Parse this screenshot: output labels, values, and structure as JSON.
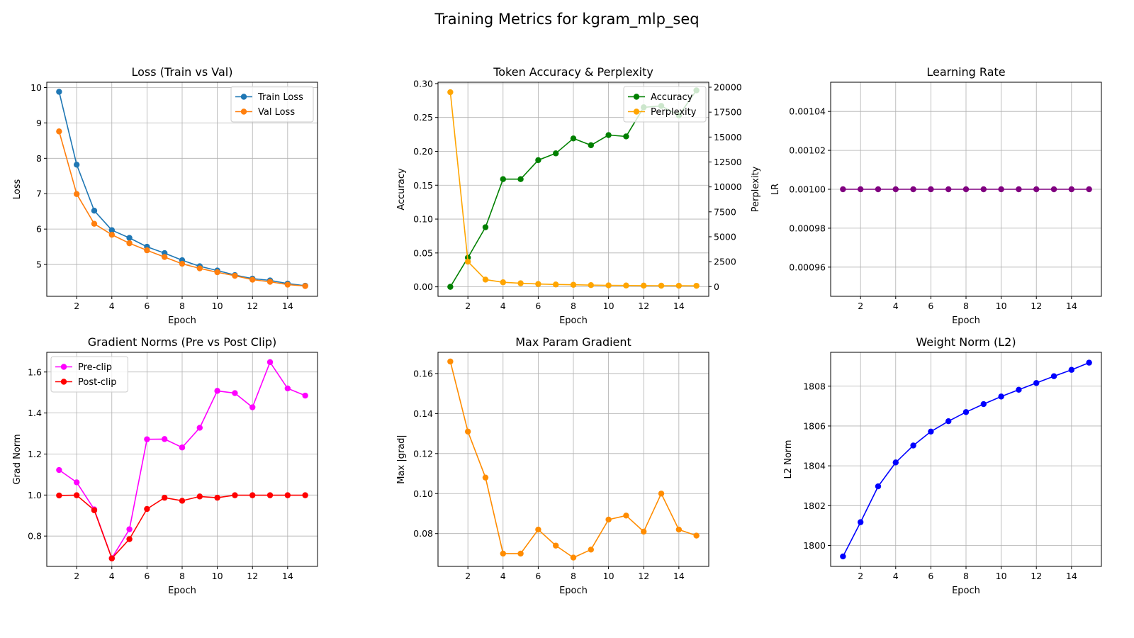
{
  "figure": {
    "title": "Training Metrics for kgram_mlp_seq"
  },
  "chart_data": [
    {
      "type": "line",
      "title": "Loss (Train vs Val)",
      "xlabel": "Epoch",
      "ylabel": "Loss",
      "x": [
        1,
        2,
        3,
        4,
        5,
        6,
        7,
        8,
        9,
        10,
        11,
        12,
        13,
        14,
        15
      ],
      "xlim": [
        0.3,
        15.7
      ],
      "xticks": [
        2,
        4,
        6,
        8,
        10,
        12,
        14
      ],
      "ylim": [
        4.1,
        10.15
      ],
      "yticks": [
        5,
        6,
        7,
        8,
        9,
        10
      ],
      "grid": true,
      "legend": "top-right",
      "series": [
        {
          "name": "Train Loss",
          "color": "#1f77b4",
          "values": [
            9.88,
            7.82,
            6.52,
            5.97,
            5.75,
            5.5,
            5.32,
            5.12,
            4.95,
            4.83,
            4.7,
            4.6,
            4.55,
            4.46,
            4.4
          ]
        },
        {
          "name": "Val Loss",
          "color": "#ff7f0e",
          "values": [
            8.76,
            6.99,
            6.15,
            5.84,
            5.6,
            5.4,
            5.21,
            5.02,
            4.89,
            4.78,
            4.68,
            4.57,
            4.51,
            4.43,
            4.39
          ]
        }
      ]
    },
    {
      "type": "line",
      "title": "Token Accuracy & Perplexity",
      "xlabel": "Epoch",
      "ylabel": "Accuracy",
      "ylabel_right": "Perplexity",
      "x": [
        1,
        2,
        3,
        4,
        5,
        6,
        7,
        8,
        9,
        10,
        11,
        12,
        13,
        14,
        15
      ],
      "xlim": [
        0.3,
        15.7
      ],
      "xticks": [
        2,
        4,
        6,
        8,
        10,
        12,
        14
      ],
      "ylim": [
        -0.014,
        0.302
      ],
      "yticks": [
        "0.00",
        "0.05",
        "0.10",
        "0.15",
        "0.20",
        "0.25",
        "0.30"
      ],
      "ylim_right": [
        -976,
        20500
      ],
      "yticks_right": [
        0,
        2500,
        5000,
        7500,
        10000,
        12500,
        15000,
        17500,
        20000
      ],
      "grid": true,
      "legend": "top-right",
      "series": [
        {
          "name": "Accuracy",
          "axis": "left",
          "color": "#008000",
          "values": [
            0.0,
            0.043,
            0.088,
            0.159,
            0.159,
            0.187,
            0.197,
            0.219,
            0.209,
            0.224,
            0.222,
            0.265,
            0.267,
            0.253,
            0.29
          ]
        },
        {
          "name": "Perplexity",
          "axis": "right",
          "color": "#ffa500",
          "values": [
            19500,
            2500,
            700,
            430,
            330,
            260,
            210,
            180,
            150,
            120,
            110,
            100,
            90,
            85,
            80
          ]
        }
      ]
    },
    {
      "type": "line",
      "title": "Learning Rate",
      "xlabel": "Epoch",
      "ylabel": "LR",
      "x": [
        1,
        2,
        3,
        4,
        5,
        6,
        7,
        8,
        9,
        10,
        11,
        12,
        13,
        14,
        15
      ],
      "xlim": [
        0.3,
        15.7
      ],
      "xticks": [
        2,
        4,
        6,
        8,
        10,
        12,
        14
      ],
      "ylim": [
        0.000945,
        0.001055
      ],
      "yticks": [
        "0.00096",
        "0.00098",
        "0.00100",
        "0.00102",
        "0.00104"
      ],
      "grid": true,
      "series": [
        {
          "color": "#800080",
          "values": [
            0.001,
            0.001,
            0.001,
            0.001,
            0.001,
            0.001,
            0.001,
            0.001,
            0.001,
            0.001,
            0.001,
            0.001,
            0.001,
            0.001,
            0.001
          ]
        }
      ]
    },
    {
      "type": "line",
      "title": "Gradient Norms (Pre vs Post Clip)",
      "xlabel": "Epoch",
      "ylabel": "Grad Norm",
      "x": [
        1,
        2,
        3,
        4,
        5,
        6,
        7,
        8,
        9,
        10,
        11,
        12,
        13,
        14,
        15
      ],
      "xlim": [
        0.3,
        15.7
      ],
      "xticks": [
        2,
        4,
        6,
        8,
        10,
        12,
        14
      ],
      "ylim": [
        0.652,
        1.696
      ],
      "yticks": [
        "0.8",
        "1.0",
        "1.2",
        "1.4",
        "1.6"
      ],
      "grid": true,
      "legend": "top-left",
      "series": [
        {
          "name": "Pre-clip",
          "color": "#ff00ff",
          "values": [
            1.122,
            1.062,
            0.93,
            0.692,
            0.833,
            1.272,
            1.273,
            1.232,
            1.328,
            1.508,
            1.497,
            1.428,
            1.648,
            1.52,
            1.485
          ]
        },
        {
          "name": "Post-clip",
          "color": "#ff0000",
          "values": [
            0.998,
            0.999,
            0.926,
            0.691,
            0.785,
            0.932,
            0.987,
            0.972,
            0.993,
            0.987,
            0.999,
            0.999,
            0.999,
            0.999,
            0.999
          ]
        }
      ]
    },
    {
      "type": "line",
      "title": "Max Param Gradient",
      "xlabel": "Epoch",
      "ylabel": "Max |grad|",
      "x": [
        1,
        2,
        3,
        4,
        5,
        6,
        7,
        8,
        9,
        10,
        11,
        12,
        13,
        14,
        15
      ],
      "xlim": [
        0.3,
        15.7
      ],
      "xticks": [
        2,
        4,
        6,
        8,
        10,
        12,
        14
      ],
      "ylim": [
        0.0636,
        0.1706
      ],
      "yticks": [
        "0.08",
        "0.10",
        "0.12",
        "0.14",
        "0.16"
      ],
      "grid": true,
      "series": [
        {
          "color": "#ff8c00",
          "values": [
            0.166,
            0.131,
            0.108,
            0.07,
            0.07,
            0.082,
            0.074,
            0.068,
            0.072,
            0.087,
            0.089,
            0.081,
            0.1,
            0.082,
            0.079
          ]
        }
      ]
    },
    {
      "type": "line",
      "title": "Weight Norm (L2)",
      "xlabel": "Epoch",
      "ylabel": "L2 Norm",
      "x": [
        1,
        2,
        3,
        4,
        5,
        6,
        7,
        8,
        9,
        10,
        11,
        12,
        13,
        14,
        15
      ],
      "xlim": [
        0.3,
        15.7
      ],
      "xticks": [
        2,
        4,
        6,
        8,
        10,
        12,
        14
      ],
      "ylim": [
        1798.95,
        1809.7
      ],
      "yticks": [
        "1800",
        "1802",
        "1804",
        "1806",
        "1808"
      ],
      "grid": true,
      "series": [
        {
          "color": "#0000ff",
          "values": [
            1799.45,
            1801.17,
            1802.97,
            1804.17,
            1805.02,
            1805.72,
            1806.24,
            1806.7,
            1807.1,
            1807.48,
            1807.82,
            1808.16,
            1808.5,
            1808.82,
            1809.18
          ]
        }
      ]
    }
  ]
}
